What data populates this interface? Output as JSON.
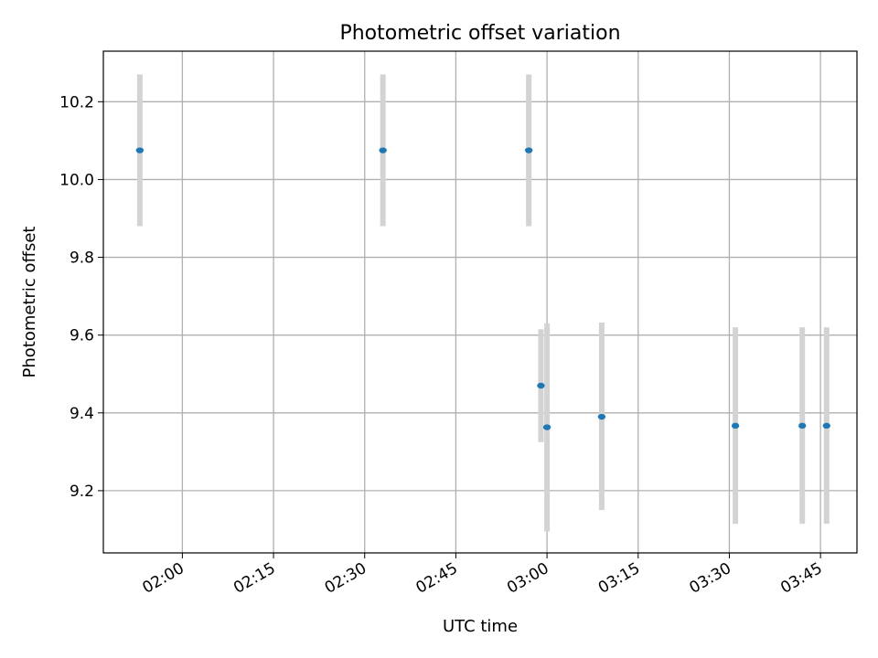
{
  "chart_data": {
    "type": "scatter",
    "title": "Photometric offset variation",
    "xlabel": "UTC time",
    "ylabel": "Photometric offset",
    "x_axis_kind": "time",
    "xlim": [
      "01:47",
      "03:51"
    ],
    "ylim": [
      9.04,
      10.33
    ],
    "x_ticks": [
      "02:00",
      "02:15",
      "02:30",
      "02:45",
      "03:00",
      "03:15",
      "03:30",
      "03:45"
    ],
    "y_ticks": [
      9.2,
      9.4,
      9.6,
      9.8,
      10.0,
      10.2
    ],
    "y_tick_labels": [
      "9.2",
      "9.4",
      "9.6",
      "9.8",
      "10.0",
      "10.2"
    ],
    "grid": true,
    "marker_color": "#1f77b4",
    "errorbar_color": "#d3d3d3",
    "points": [
      {
        "x": "01:53",
        "y": 10.075,
        "ylow": 9.88,
        "yhigh": 10.27
      },
      {
        "x": "02:33",
        "y": 10.075,
        "ylow": 9.88,
        "yhigh": 10.27
      },
      {
        "x": "02:57",
        "y": 10.075,
        "ylow": 9.88,
        "yhigh": 10.27
      },
      {
        "x": "02:59",
        "y": 9.47,
        "ylow": 9.325,
        "yhigh": 9.615
      },
      {
        "x": "03:00",
        "y": 9.363,
        "ylow": 9.095,
        "yhigh": 9.63
      },
      {
        "x": "03:09",
        "y": 9.39,
        "ylow": 9.15,
        "yhigh": 9.632
      },
      {
        "x": "03:31",
        "y": 9.367,
        "ylow": 9.115,
        "yhigh": 9.62
      },
      {
        "x": "03:42",
        "y": 9.367,
        "ylow": 9.115,
        "yhigh": 9.62
      },
      {
        "x": "03:46",
        "y": 9.367,
        "ylow": 9.115,
        "yhigh": 9.62
      }
    ]
  }
}
